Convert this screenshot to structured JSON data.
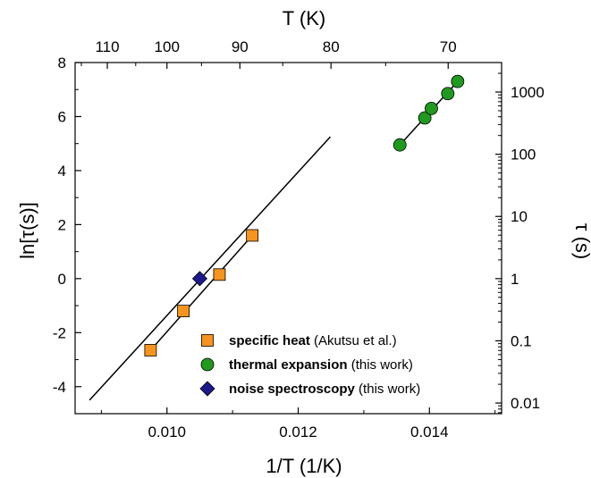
{
  "chart_data": {
    "type": "scatter",
    "xlabel": "1/T (1/K)",
    "ylabel": "ln[τ(s)]",
    "top_xlabel": "T (K)",
    "right_ylabel": "τ (s)",
    "xlim": [
      0.0086,
      0.0151
    ],
    "ylim": [
      -5,
      8
    ],
    "x_ticks": [
      {
        "value": 0.01,
        "label": "0.010"
      },
      {
        "value": 0.012,
        "label": "0.012"
      },
      {
        "value": 0.014,
        "label": "0.014"
      }
    ],
    "y_ticks": [
      {
        "value": 8,
        "label": "8"
      },
      {
        "value": 6,
        "label": "6"
      },
      {
        "value": 4,
        "label": "4"
      },
      {
        "value": 2,
        "label": "2"
      },
      {
        "value": 0,
        "label": "0"
      },
      {
        "value": -2,
        "label": "-2"
      },
      {
        "value": -4,
        "label": "-4"
      }
    ],
    "top_ticks": [
      {
        "value": 110,
        "label": "110"
      },
      {
        "value": 100,
        "label": "100"
      },
      {
        "value": 90,
        "label": "90"
      },
      {
        "value": 80,
        "label": "80"
      },
      {
        "value": 70,
        "label": "70"
      }
    ],
    "right_ticks": [
      {
        "value": 1000,
        "label": "1000"
      },
      {
        "value": 100,
        "label": "100"
      },
      {
        "value": 10,
        "label": "10"
      },
      {
        "value": 1,
        "label": "1"
      },
      {
        "value": 0.1,
        "label": "0.1"
      },
      {
        "value": 0.01,
        "label": "0.01"
      }
    ],
    "series": [
      {
        "name": "specific heat",
        "legend_bold": "specific heat",
        "legend_rest": " (Akutsu et al.)",
        "marker": "square",
        "color": "#f7941d",
        "points": [
          [
            0.00975,
            -2.65
          ],
          [
            0.01025,
            -1.2
          ],
          [
            0.0108,
            0.15
          ],
          [
            0.0113,
            1.6
          ]
        ]
      },
      {
        "name": "thermal expansion",
        "legend_bold": "thermal expansion",
        "legend_rest": " (this work)",
        "marker": "circle",
        "color": "#1f9a1f",
        "points": [
          [
            0.01355,
            4.95
          ],
          [
            0.01393,
            5.95
          ],
          [
            0.01403,
            6.3
          ],
          [
            0.01428,
            6.85
          ],
          [
            0.01443,
            7.3
          ]
        ]
      },
      {
        "name": "noise spectroscopy",
        "legend_bold": "noise spectroscopy",
        "legend_rest": " (this work)",
        "marker": "diamond",
        "color": "#1a1a8c",
        "points": [
          [
            0.0105,
            0.0
          ]
        ]
      }
    ],
    "lines": [
      {
        "points": [
          [
            0.00882,
            -4.5
          ],
          [
            0.01249,
            5.25
          ]
        ],
        "color": "#000000"
      },
      {
        "points": [
          [
            0.00975,
            -2.65
          ],
          [
            0.0113,
            1.6
          ]
        ],
        "color": "#000000"
      },
      {
        "points": [
          [
            0.01355,
            4.95
          ],
          [
            0.01443,
            7.3
          ]
        ],
        "color": "#000000"
      }
    ],
    "legend_position": "bottom-right",
    "grid": false
  }
}
